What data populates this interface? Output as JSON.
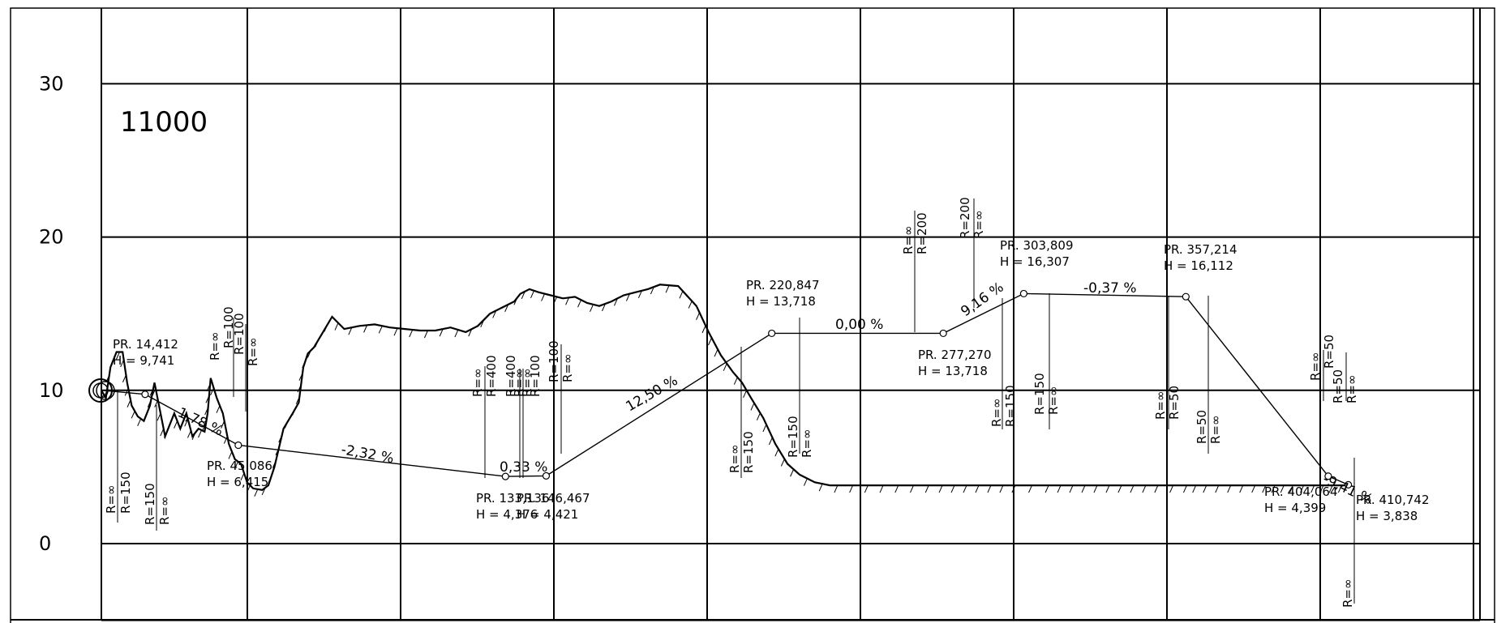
{
  "section_id": "11000",
  "y_axis": {
    "ticks": [
      0,
      10,
      20,
      30
    ]
  },
  "chart_data": {
    "type": "line",
    "title": "11000",
    "ylim": [
      -5,
      35
    ],
    "x": [
      0,
      1.5,
      3,
      5,
      7,
      8.5,
      10,
      12,
      14,
      16,
      17.5,
      19,
      21,
      24,
      26,
      28,
      30,
      32,
      34,
      35,
      36,
      38,
      40,
      42,
      44,
      46,
      48,
      50,
      53,
      55,
      57,
      60,
      63,
      65,
      66.5,
      68,
      70,
      73,
      76,
      80,
      85,
      90,
      95,
      100,
      105,
      110,
      115,
      120,
      124,
      128,
      132,
      136,
      138,
      141,
      144,
      148,
      152,
      156,
      160,
      164,
      168,
      172,
      176,
      180,
      184,
      190,
      196,
      200,
      204,
      208,
      211,
      214,
      218,
      222,
      226,
      230,
      235,
      240,
      245,
      250,
      255,
      260,
      265,
      270,
      275,
      279,
      283,
      287,
      291,
      295,
      299,
      303,
      310,
      318,
      326,
      334,
      342,
      350,
      356,
      359,
      362,
      366,
      370,
      374,
      378,
      382,
      385,
      388,
      391,
      394,
      398,
      401,
      404,
      407,
      410
    ],
    "series": [
      {
        "values": [
          10,
          9.5,
          11.5,
          12.5,
          12.5,
          10.5,
          9,
          8.3,
          8,
          9,
          10.5,
          9,
          7,
          8.5,
          7.5,
          8.5,
          7,
          7.5,
          7.3,
          8.5,
          10.8,
          9.5,
          8.5,
          6.5,
          5.5,
          5.2,
          4,
          3.6,
          3.5,
          3.8,
          5,
          7.5,
          8.5,
          9.2,
          11.5,
          12.4,
          12.8,
          13.8,
          14.8,
          14.0,
          14.2,
          14.3,
          14.1,
          14.0,
          13.9,
          13.9,
          14.1,
          13.8,
          14.2,
          15.0,
          15.4,
          15.8,
          16.3,
          16.6,
          16.4,
          16.2,
          16.0,
          16.1,
          15.7,
          15.5,
          15.8,
          16.2,
          16.4,
          16.6,
          16.9,
          16.8,
          15.5,
          13.8,
          12.3,
          11.2,
          10.5,
          9.5,
          8.2,
          6.5,
          5.2,
          4.5,
          4.0,
          3.8,
          3.8,
          3.8,
          3.8,
          3.8,
          3.8,
          3.8,
          3.8,
          3.8,
          3.8,
          3.8,
          3.8,
          3.8,
          3.8,
          3.8,
          3.8,
          3.8,
          3.8,
          3.8,
          3.8,
          3.8,
          3.8,
          3.8,
          3.8,
          3.8,
          3.8,
          3.8,
          3.8,
          3.8,
          3.8,
          3.8,
          3.8,
          3.8,
          3.8,
          3.8,
          3.8,
          3.8,
          3.8
        ]
      }
    ],
    "grade_labels": [
      "1,78 %",
      "-2,32 %",
      "0,33 %",
      "12,50 %",
      "0,00 %",
      "9,16 %",
      "-0,37 %",
      "-9,41 %"
    ],
    "vertical_points": [
      {
        "pr": "PR. 14,412",
        "h": "H = 9,741"
      },
      {
        "pr": "PR. 45,086",
        "h": "H = 6,415"
      },
      {
        "pr": "PR. 133,136",
        "h": "H = 4,376"
      },
      {
        "pr": "PR. 146,467",
        "h": "H = 4,421"
      },
      {
        "pr": "PR. 220,847",
        "h": "H = 13,718"
      },
      {
        "pr": "PR. 277,270",
        "h": "H = 13,718"
      },
      {
        "pr": "PR. 303,809",
        "h": "H = 16,307"
      },
      {
        "pr": "PR. 357,214",
        "h": "H = 16,112"
      },
      {
        "pr": "PR. 404,064",
        "h": "H = 4,399"
      },
      {
        "pr": "PR. 410,742",
        "h": "H = 3,838"
      }
    ],
    "radius_labels": [
      "R=∞",
      "R=150",
      "R=150",
      "R=∞",
      "R=∞",
      "R=100",
      "R=100",
      "R=∞",
      "R=∞",
      "R=400",
      "R=400",
      "R=∞",
      "R=∞",
      "R=100",
      "R=100",
      "R=∞",
      "R=∞",
      "R=150",
      "R=150",
      "R=∞",
      "R=∞",
      "R=200",
      "R=200",
      "R=∞",
      "R=∞",
      "R=150",
      "R=150",
      "R=∞",
      "R=∞",
      "R=50",
      "R=50",
      "R=∞",
      "R=∞",
      "R=50",
      "R=50",
      "R=∞",
      "R=∞"
    ],
    "grid": true
  }
}
